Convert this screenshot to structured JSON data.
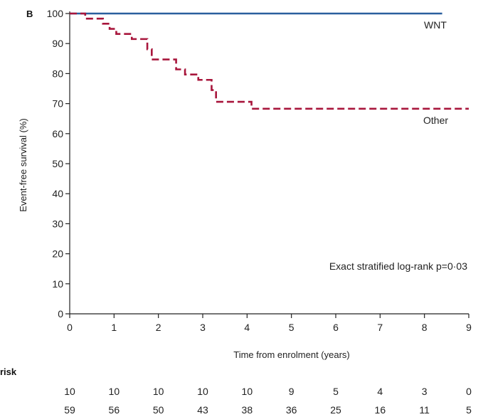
{
  "panel_label": "B",
  "chart_data": {
    "type": "line",
    "title": "",
    "xlabel": "Time from enrolment (years)",
    "ylabel": "Event-free survival (%)",
    "xlim": [
      0,
      9
    ],
    "ylim": [
      0,
      100
    ],
    "x_ticks": [
      "0",
      "1",
      "2",
      "3",
      "4",
      "5",
      "6",
      "7",
      "8",
      "9"
    ],
    "y_ticks": [
      "0",
      "10",
      "20",
      "30",
      "40",
      "50",
      "60",
      "70",
      "80",
      "90",
      "100"
    ],
    "grid": false,
    "series": [
      {
        "name": "WNT",
        "color": "#2a5f9e",
        "style": "solid",
        "x": [
          0,
          8.4
        ],
        "y": [
          100,
          100
        ]
      },
      {
        "name": "Other",
        "color": "#a8163c",
        "style": "dashed",
        "x": [
          0,
          0.35,
          0.75,
          0.9,
          1.05,
          1.4,
          1.75,
          1.85,
          2.4,
          2.6,
          2.9,
          3.2,
          3.3,
          4.1,
          9
        ],
        "y": [
          100,
          98.3,
          96.6,
          94.9,
          93.2,
          91.5,
          88.1,
          84.7,
          81.4,
          79.7,
          77.9,
          74.5,
          70.6,
          68.3,
          68.3
        ]
      }
    ],
    "annotation": "Exact stratified log-rank p=0·03",
    "risk_table": {
      "title": "risk",
      "times": [
        0,
        1,
        2,
        3,
        4,
        5,
        6,
        7,
        8,
        9
      ],
      "rows": [
        {
          "values": [
            "10",
            "10",
            "10",
            "10",
            "10",
            "9",
            "5",
            "4",
            "3",
            "0"
          ]
        },
        {
          "values": [
            "59",
            "56",
            "50",
            "43",
            "38",
            "36",
            "25",
            "16",
            "11",
            "5"
          ]
        }
      ]
    }
  }
}
